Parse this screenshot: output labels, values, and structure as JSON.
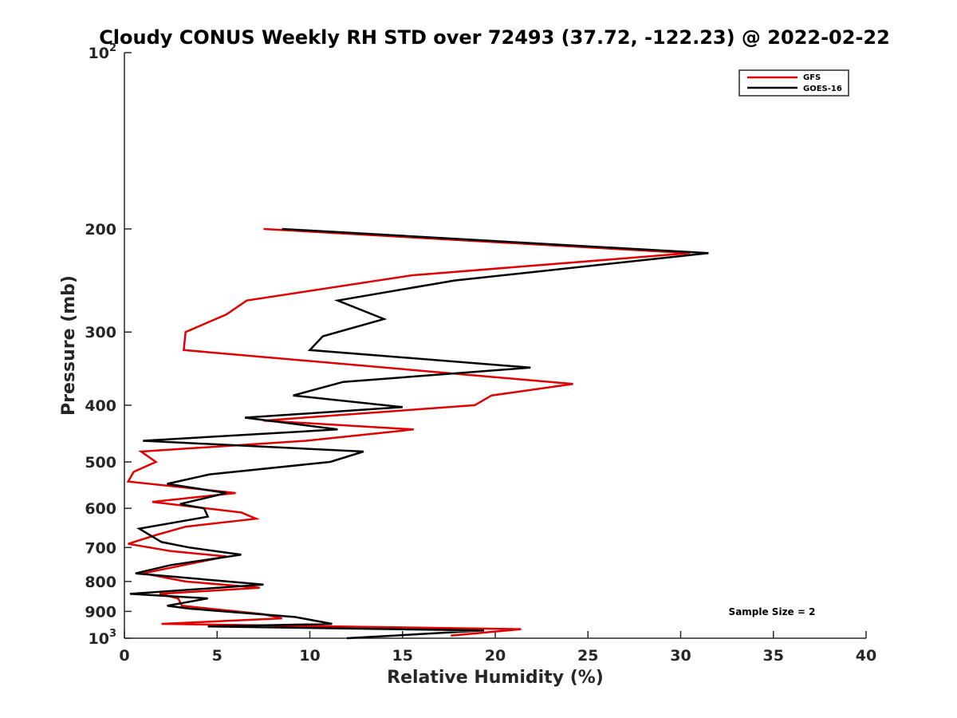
{
  "chart_data": {
    "type": "line",
    "title": "Cloudy CONUS Weekly RH STD over 72493 (37.72, -122.23) @ 2022-02-22",
    "xlabel": "Relative Humidity (%)",
    "ylabel": "Pressure (mb)",
    "xlim": [
      0,
      40
    ],
    "ylim": [
      100,
      1000
    ],
    "yscale": "log",
    "yreversed": true,
    "grid": false,
    "legend_position": "top-right",
    "x_ticks": [
      "0",
      "5",
      "10",
      "15",
      "20",
      "25",
      "30",
      "35",
      "40"
    ],
    "x_tick_values": [
      0,
      5,
      10,
      15,
      20,
      25,
      30,
      35,
      40
    ],
    "y_ticks": [
      {
        "value": 100,
        "base": "10",
        "exp": "2"
      },
      {
        "value": 200,
        "label": "200"
      },
      {
        "value": 300,
        "label": "300"
      },
      {
        "value": 400,
        "label": "400"
      },
      {
        "value": 500,
        "label": "500"
      },
      {
        "value": 600,
        "label": "600"
      },
      {
        "value": 700,
        "label": "700"
      },
      {
        "value": 800,
        "label": "800"
      },
      {
        "value": 900,
        "label": "900"
      },
      {
        "value": 1000,
        "base": "10",
        "exp": "3"
      }
    ],
    "annotation": "Sample Size = 2",
    "series": [
      {
        "name": "GFS",
        "color": "#e00000",
        "points": [
          [
            7.5,
            200
          ],
          [
            30.5,
            220
          ],
          [
            15.5,
            240
          ],
          [
            6.6,
            265
          ],
          [
            5.5,
            280
          ],
          [
            3.3,
            300
          ],
          [
            3.2,
            322
          ],
          [
            24.2,
            368
          ],
          [
            19.8,
            385
          ],
          [
            18.9,
            400
          ],
          [
            7.5,
            425
          ],
          [
            15.6,
            440
          ],
          [
            9.8,
            460
          ],
          [
            0.9,
            480
          ],
          [
            1.7,
            500
          ],
          [
            0.5,
            520
          ],
          [
            0.2,
            540
          ],
          [
            6.0,
            565
          ],
          [
            1.5,
            585
          ],
          [
            6.3,
            610
          ],
          [
            7.1,
            625
          ],
          [
            3.3,
            645
          ],
          [
            1.8,
            665
          ],
          [
            0.2,
            690
          ],
          [
            2.5,
            710
          ],
          [
            5.5,
            725
          ],
          [
            1.0,
            775
          ],
          [
            3.3,
            800
          ],
          [
            7.3,
            820
          ],
          [
            1.9,
            840
          ],
          [
            2.9,
            855
          ],
          [
            3.1,
            880
          ],
          [
            7.5,
            910
          ],
          [
            8.5,
            925
          ],
          [
            2.0,
            945
          ],
          [
            21.4,
            965
          ],
          [
            17.6,
            990
          ]
        ]
      },
      {
        "name": "GOES-16",
        "color": "#000000",
        "points": [
          [
            8.5,
            200
          ],
          [
            31.5,
            220
          ],
          [
            17.8,
            245
          ],
          [
            11.5,
            265
          ],
          [
            14.0,
            285
          ],
          [
            10.7,
            305
          ],
          [
            10.0,
            322
          ],
          [
            21.9,
            345
          ],
          [
            11.8,
            365
          ],
          [
            9.1,
            385
          ],
          [
            15.0,
            403
          ],
          [
            6.5,
            420
          ],
          [
            11.5,
            440
          ],
          [
            1.0,
            460
          ],
          [
            12.9,
            480
          ],
          [
            11.1,
            500
          ],
          [
            4.6,
            525
          ],
          [
            2.3,
            545
          ],
          [
            5.5,
            565
          ],
          [
            3.0,
            590
          ],
          [
            4.3,
            600
          ],
          [
            4.5,
            620
          ],
          [
            0.8,
            650
          ],
          [
            2.0,
            685
          ],
          [
            3.5,
            700
          ],
          [
            6.3,
            720
          ],
          [
            2.5,
            750
          ],
          [
            0.6,
            775
          ],
          [
            7.5,
            810
          ],
          [
            0.3,
            840
          ],
          [
            4.5,
            855
          ],
          [
            2.3,
            880
          ],
          [
            3.5,
            890
          ],
          [
            9.2,
            920
          ],
          [
            11.2,
            945
          ],
          [
            4.5,
            955
          ],
          [
            19.4,
            970
          ],
          [
            12.0,
            1000
          ]
        ]
      }
    ]
  }
}
